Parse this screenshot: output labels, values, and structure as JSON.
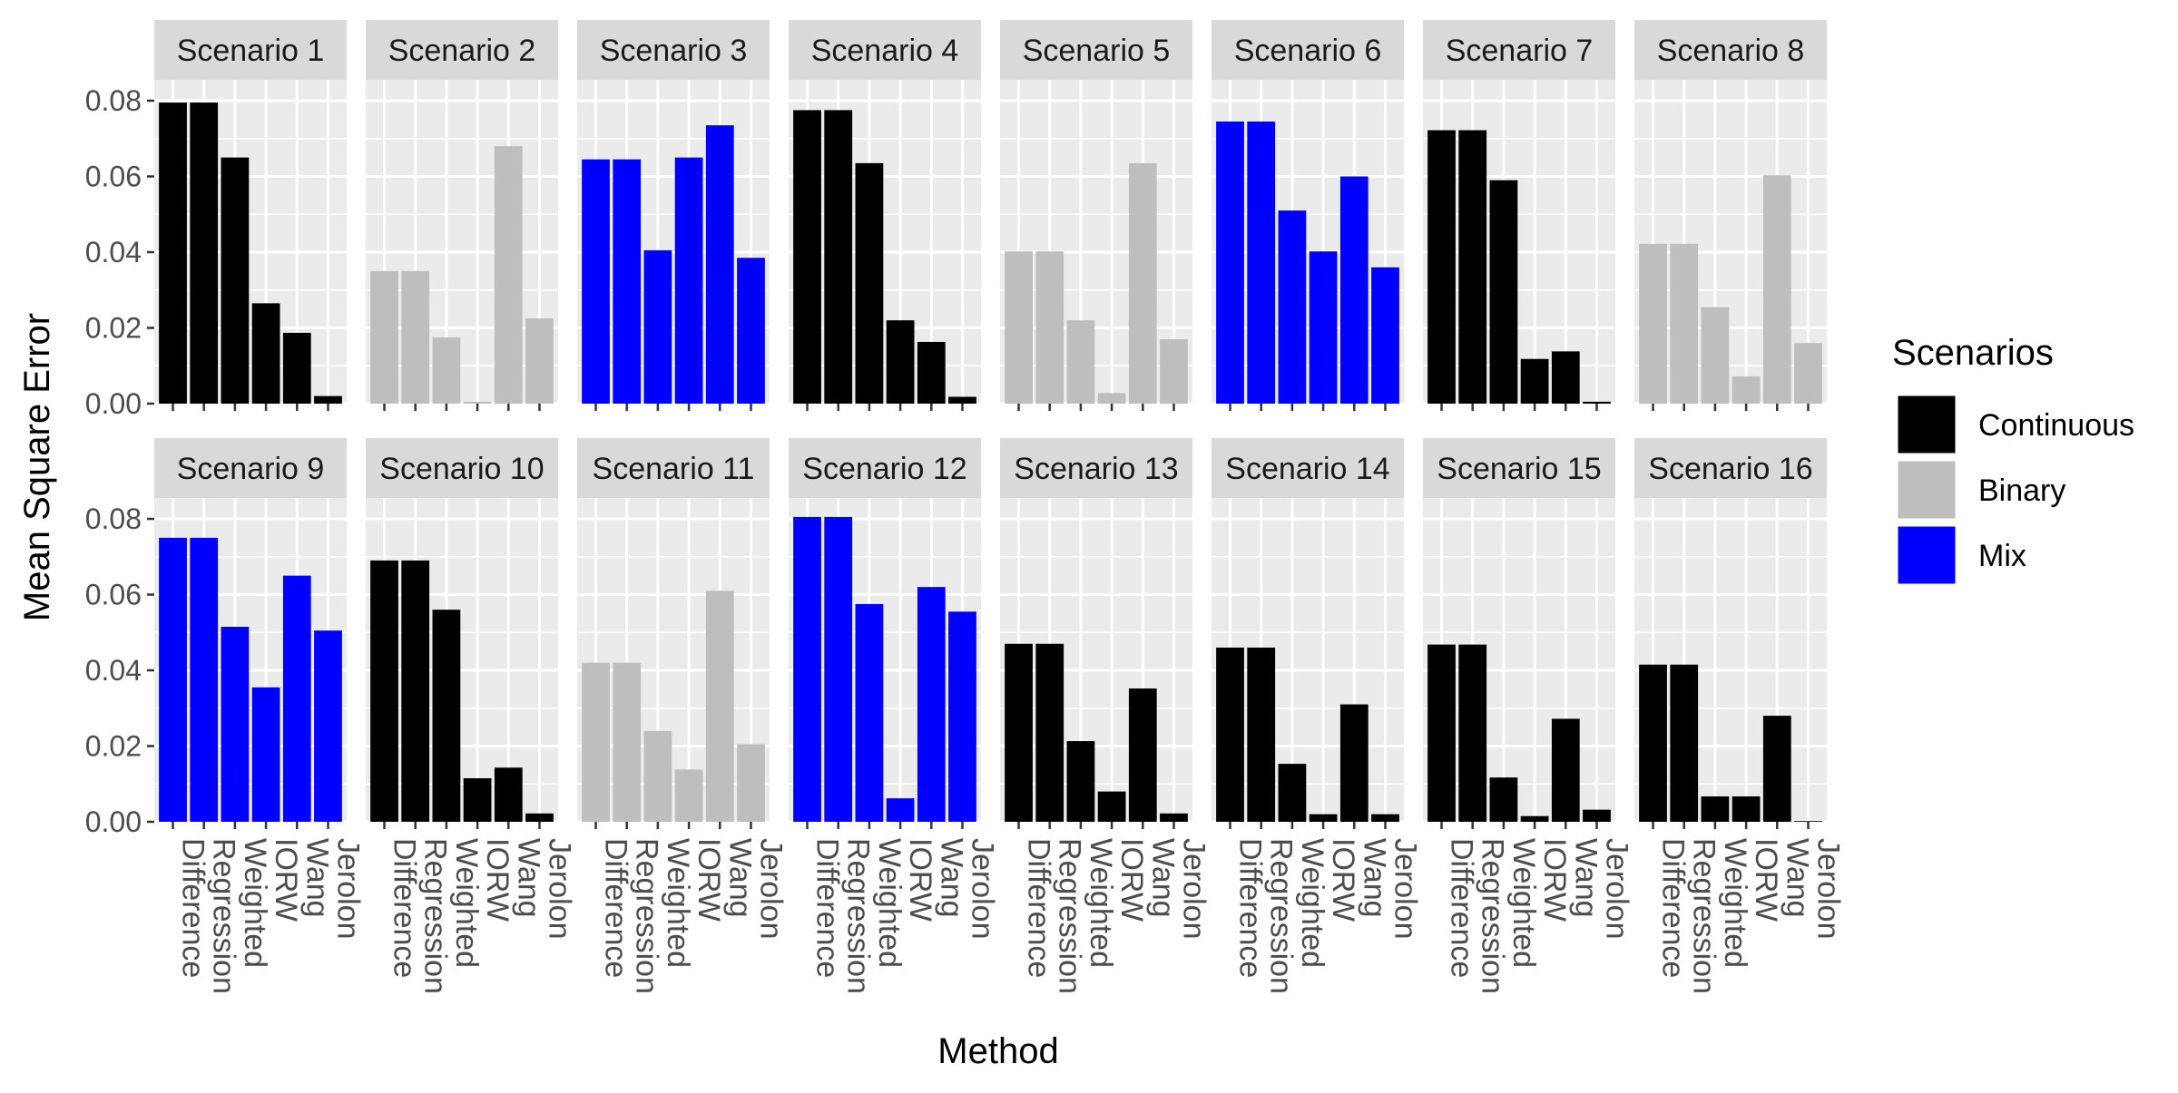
{
  "chart_data": {
    "type": "bar",
    "facet": "wrap",
    "ylabel": "Mean Square Error",
    "xlabel": "Method",
    "ylim": [
      0,
      0.085
    ],
    "yticks": [
      0.0,
      0.02,
      0.04,
      0.06,
      0.08
    ],
    "ytick_labels": [
      "0.00",
      "0.02",
      "0.04",
      "0.06",
      "0.08"
    ],
    "categories": [
      "Difference",
      "Regression",
      "Weighted",
      "IORW",
      "Wang",
      "Jerolon"
    ],
    "legend": {
      "title": "Scenarios",
      "position": "right",
      "items": [
        {
          "label": "Continuous",
          "color": "#000000"
        },
        {
          "label": "Binary",
          "color": "#BEBEBE"
        },
        {
          "label": "Mix",
          "color": "#0000FF"
        }
      ]
    },
    "panels": [
      {
        "title": "Scenario 1",
        "group": "Continuous",
        "values": [
          0.0795,
          0.0795,
          0.065,
          0.0265,
          0.0187,
          0.002
        ]
      },
      {
        "title": "Scenario 2",
        "group": "Binary",
        "values": [
          0.035,
          0.035,
          0.0175,
          0.0005,
          0.068,
          0.0225
        ]
      },
      {
        "title": "Scenario 3",
        "group": "Mix",
        "values": [
          0.0645,
          0.0645,
          0.0405,
          0.065,
          0.0735,
          0.0385
        ]
      },
      {
        "title": "Scenario 4",
        "group": "Continuous",
        "values": [
          0.0775,
          0.0775,
          0.0635,
          0.022,
          0.0163,
          0.0018
        ]
      },
      {
        "title": "Scenario 5",
        "group": "Binary",
        "values": [
          0.0402,
          0.0402,
          0.022,
          0.0028,
          0.0635,
          0.017
        ]
      },
      {
        "title": "Scenario 6",
        "group": "Mix",
        "values": [
          0.0745,
          0.0745,
          0.051,
          0.0402,
          0.06,
          0.036
        ]
      },
      {
        "title": "Scenario 7",
        "group": "Continuous",
        "values": [
          0.0722,
          0.0722,
          0.059,
          0.0118,
          0.0138,
          0.0005
        ]
      },
      {
        "title": "Scenario 8",
        "group": "Binary",
        "values": [
          0.0422,
          0.0422,
          0.0255,
          0.0072,
          0.0603,
          0.016
        ]
      },
      {
        "title": "Scenario 9",
        "group": "Mix",
        "values": [
          0.075,
          0.075,
          0.0515,
          0.0355,
          0.065,
          0.0505
        ]
      },
      {
        "title": "Scenario 10",
        "group": "Continuous",
        "values": [
          0.069,
          0.069,
          0.056,
          0.0115,
          0.0143,
          0.0022
        ]
      },
      {
        "title": "Scenario 11",
        "group": "Binary",
        "values": [
          0.042,
          0.042,
          0.024,
          0.0138,
          0.061,
          0.0205
        ]
      },
      {
        "title": "Scenario 12",
        "group": "Mix",
        "values": [
          0.0805,
          0.0805,
          0.0575,
          0.0062,
          0.062,
          0.0555
        ]
      },
      {
        "title": "Scenario 13",
        "group": "Continuous",
        "values": [
          0.047,
          0.047,
          0.0213,
          0.008,
          0.0352,
          0.0022
        ]
      },
      {
        "title": "Scenario 14",
        "group": "Continuous",
        "values": [
          0.046,
          0.046,
          0.0153,
          0.002,
          0.031,
          0.002
        ]
      },
      {
        "title": "Scenario 15",
        "group": "Continuous",
        "values": [
          0.0468,
          0.0468,
          0.0117,
          0.0015,
          0.0272,
          0.0032
        ]
      },
      {
        "title": "Scenario 16",
        "group": "Continuous",
        "values": [
          0.0415,
          0.0415,
          0.0067,
          0.0067,
          0.028,
          0.0002
        ]
      }
    ]
  }
}
